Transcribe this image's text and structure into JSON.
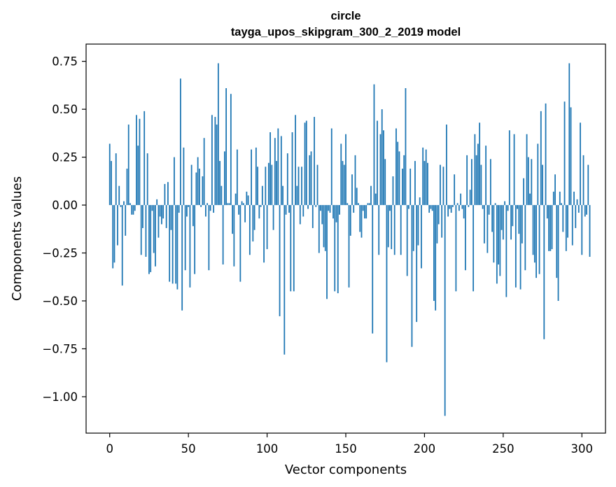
{
  "chart_data": {
    "type": "bar",
    "title_line1": "circle",
    "title_line2": "tayga_upos_skipgram_300_2_2019 model",
    "xlabel": "Vector components",
    "ylabel": "Components values",
    "xlim": [
      -15,
      315
    ],
    "ylim": [
      -1.19,
      0.84
    ],
    "xticks": [
      0,
      50,
      100,
      150,
      200,
      250,
      300
    ],
    "xtick_labels": [
      "0",
      "50",
      "100",
      "150",
      "200",
      "250",
      "300"
    ],
    "yticks": [
      -1.0,
      -0.75,
      -0.5,
      -0.25,
      0.0,
      0.25,
      0.5,
      0.75
    ],
    "ytick_labels": [
      "−1.00",
      "−0.75",
      "−0.50",
      "−0.25",
      "0.00",
      "0.25",
      "0.50",
      "0.75"
    ],
    "bar_color": "#1f77b4",
    "grid": false,
    "values": [
      0.32,
      0.23,
      -0.33,
      -0.3,
      0.27,
      -0.21,
      0.1,
      -0.01,
      -0.42,
      0.02,
      -0.16,
      0.19,
      0.42,
      0.01,
      -0.05,
      -0.05,
      -0.03,
      0.47,
      0.31,
      0.45,
      -0.26,
      -0.12,
      0.49,
      -0.27,
      0.27,
      -0.36,
      -0.35,
      -0.03,
      -0.25,
      -0.32,
      0.03,
      -0.17,
      -0.06,
      -0.1,
      -0.07,
      0.11,
      -0.12,
      0.12,
      -0.4,
      -0.13,
      -0.41,
      0.25,
      -0.41,
      -0.44,
      -0.04,
      0.66,
      -0.55,
      0.3,
      -0.34,
      -0.06,
      -0.01,
      -0.43,
      0.21,
      -0.11,
      -0.36,
      0.17,
      0.25,
      0.19,
      -0.01,
      0.15,
      0.35,
      -0.06,
      0.01,
      -0.34,
      -0.03,
      0.47,
      -0.04,
      0.46,
      0.42,
      0.74,
      0.23,
      0.1,
      -0.31,
      0.28,
      0.61,
      0.01,
      0.01,
      0.58,
      -0.15,
      -0.32,
      0.06,
      0.29,
      -0.05,
      -0.4,
      0.02,
      0.01,
      -0.09,
      0.07,
      0.05,
      -0.26,
      0.29,
      -0.19,
      -0.13,
      0.3,
      0.2,
      -0.07,
      -0.01,
      0.1,
      -0.3,
      0.2,
      -0.23,
      0.22,
      0.38,
      0.21,
      -0.13,
      0.35,
      0.23,
      0.4,
      -0.58,
      0.36,
      0.1,
      -0.78,
      -0.05,
      0.27,
      -0.04,
      -0.45,
      0.38,
      -0.45,
      0.47,
      0.1,
      0.2,
      -0.1,
      0.2,
      -0.06,
      0.43,
      0.44,
      -0.02,
      0.26,
      0.28,
      -0.12,
      0.46,
      -0.01,
      0.21,
      -0.25,
      -0.03,
      -0.1,
      -0.22,
      -0.24,
      -0.49,
      -0.03,
      -0.04,
      0.4,
      -0.07,
      -0.45,
      -0.09,
      -0.46,
      -0.05,
      0.32,
      0.23,
      0.21,
      0.37,
      0.01,
      -0.43,
      -0.16,
      0.16,
      -0.04,
      0.26,
      0.09,
      0.01,
      -0.14,
      -0.17,
      -0.03,
      -0.07,
      -0.07,
      0.01,
      0.01,
      0.1,
      -0.67,
      0.63,
      0.06,
      0.44,
      -0.26,
      0.37,
      0.5,
      0.39,
      0.24,
      -0.82,
      -0.22,
      -0.03,
      -0.23,
      0.15,
      -0.26,
      0.4,
      0.33,
      0.28,
      -0.26,
      0.19,
      0.26,
      0.61,
      -0.37,
      -0.02,
      0.19,
      -0.74,
      -0.24,
      0.23,
      -0.61,
      -0.21,
      0.04,
      -0.33,
      0.3,
      0.23,
      0.29,
      0.22,
      -0.04,
      -0.02,
      -0.03,
      -0.5,
      -0.55,
      -0.2,
      -0.1,
      0.21,
      -0.17,
      0.2,
      -1.1,
      0.42,
      -0.06,
      -0.02,
      -0.04,
      -0.01,
      0.16,
      -0.45,
      0.01,
      -0.03,
      0.06,
      -0.02,
      -0.07,
      -0.34,
      0.26,
      -0.01,
      0.08,
      0.24,
      -0.45,
      0.37,
      0.26,
      0.32,
      0.43,
      0.21,
      -0.02,
      -0.2,
      0.31,
      -0.25,
      -0.05,
      0.24,
      -0.14,
      -0.3,
      0.01,
      -0.41,
      -0.31,
      -0.37,
      -0.13,
      -0.18,
      0.02,
      -0.48,
      -0.03,
      0.39,
      -0.18,
      -0.11,
      0.37,
      -0.43,
      -0.02,
      -0.15,
      -0.44,
      -0.2,
      0.14,
      -0.34,
      0.37,
      0.25,
      0.06,
      0.24,
      -0.26,
      -0.3,
      -0.38,
      0.32,
      -0.36,
      0.49,
      0.21,
      -0.7,
      0.53,
      -0.07,
      -0.24,
      -0.24,
      -0.23,
      0.07,
      0.16,
      -0.38,
      -0.5,
      0.07,
      0.01,
      -0.14,
      0.54,
      -0.24,
      -0.17,
      0.74,
      0.51,
      -0.21,
      0.07,
      -0.12,
      0.03,
      -0.04,
      0.43,
      -0.26,
      0.26,
      -0.06,
      -0.05,
      0.21,
      -0.27
    ]
  }
}
